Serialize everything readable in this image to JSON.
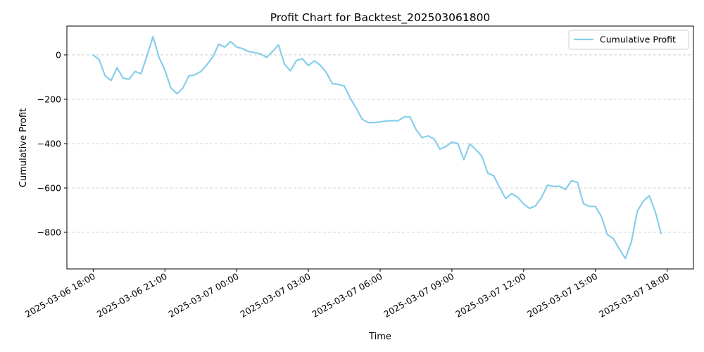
{
  "chart_data": {
    "type": "line",
    "title": "Profit Chart for Backtest_202503061800",
    "xlabel": "Time",
    "ylabel": "Cumulative Profit",
    "xlim": [
      "2025-03-06 16:54",
      "2025-03-07 19:06"
    ],
    "ylim": [
      -965,
      130
    ],
    "grid": "horizontal dashed",
    "legend_position": "top-right",
    "x_ticks": [
      {
        "time": "2025-03-06 18:00",
        "label": "2025-03-06 18:00"
      },
      {
        "time": "2025-03-06 21:00",
        "label": "2025-03-06 21:00"
      },
      {
        "time": "2025-03-07 00:00",
        "label": "2025-03-07 00:00"
      },
      {
        "time": "2025-03-07 03:00",
        "label": "2025-03-07 03:00"
      },
      {
        "time": "2025-03-07 06:00",
        "label": "2025-03-07 06:00"
      },
      {
        "time": "2025-03-07 09:00",
        "label": "2025-03-07 09:00"
      },
      {
        "time": "2025-03-07 12:00",
        "label": "2025-03-07 12:00"
      },
      {
        "time": "2025-03-07 15:00",
        "label": "2025-03-07 15:00"
      },
      {
        "time": "2025-03-07 18:00",
        "label": "2025-03-07 18:00"
      }
    ],
    "y_ticks": [
      {
        "value": 0,
        "label": "0"
      },
      {
        "value": -200,
        "label": "−200"
      },
      {
        "value": -400,
        "label": "−400"
      },
      {
        "value": -600,
        "label": "−600"
      },
      {
        "value": -800,
        "label": "−800"
      }
    ],
    "series": [
      {
        "name": "Cumulative Profit",
        "color": "#87ceeb",
        "x": [
          "2025-03-06 18:00",
          "2025-03-06 18:15",
          "2025-03-06 18:30",
          "2025-03-06 18:45",
          "2025-03-06 19:00",
          "2025-03-06 19:15",
          "2025-03-06 19:30",
          "2025-03-06 19:45",
          "2025-03-06 20:00",
          "2025-03-06 20:15",
          "2025-03-06 20:30",
          "2025-03-06 20:45",
          "2025-03-06 21:00",
          "2025-03-06 21:15",
          "2025-03-06 21:30",
          "2025-03-06 21:45",
          "2025-03-06 22:00",
          "2025-03-06 22:15",
          "2025-03-06 22:30",
          "2025-03-06 22:45",
          "2025-03-06 23:00",
          "2025-03-06 23:15",
          "2025-03-06 23:30",
          "2025-03-06 23:45",
          "2025-03-07 00:00",
          "2025-03-07 00:15",
          "2025-03-07 00:30",
          "2025-03-07 00:45",
          "2025-03-07 01:00",
          "2025-03-07 01:15",
          "2025-03-07 01:30",
          "2025-03-07 01:45",
          "2025-03-07 02:00",
          "2025-03-07 02:15",
          "2025-03-07 02:30",
          "2025-03-07 02:45",
          "2025-03-07 03:00",
          "2025-03-07 03:15",
          "2025-03-07 03:30",
          "2025-03-07 03:45",
          "2025-03-07 04:00",
          "2025-03-07 04:15",
          "2025-03-07 04:30",
          "2025-03-07 04:45",
          "2025-03-07 05:00",
          "2025-03-07 05:15",
          "2025-03-07 05:30",
          "2025-03-07 05:45",
          "2025-03-07 06:00",
          "2025-03-07 06:15",
          "2025-03-07 06:30",
          "2025-03-07 06:45",
          "2025-03-07 07:00",
          "2025-03-07 07:15",
          "2025-03-07 07:30",
          "2025-03-07 07:45",
          "2025-03-07 08:00",
          "2025-03-07 08:15",
          "2025-03-07 08:30",
          "2025-03-07 08:45",
          "2025-03-07 09:00",
          "2025-03-07 09:15",
          "2025-03-07 09:30",
          "2025-03-07 09:45",
          "2025-03-07 10:00",
          "2025-03-07 10:15",
          "2025-03-07 10:30",
          "2025-03-07 10:45",
          "2025-03-07 11:00",
          "2025-03-07 11:15",
          "2025-03-07 11:30",
          "2025-03-07 11:45",
          "2025-03-07 12:00",
          "2025-03-07 12:15",
          "2025-03-07 12:30",
          "2025-03-07 12:45",
          "2025-03-07 13:00",
          "2025-03-07 13:15",
          "2025-03-07 13:30",
          "2025-03-07 13:45",
          "2025-03-07 14:00",
          "2025-03-07 14:15",
          "2025-03-07 14:30",
          "2025-03-07 14:45",
          "2025-03-07 15:00",
          "2025-03-07 15:15",
          "2025-03-07 15:30",
          "2025-03-07 15:45",
          "2025-03-07 16:00",
          "2025-03-07 16:15",
          "2025-03-07 16:30",
          "2025-03-07 16:45",
          "2025-03-07 17:00",
          "2025-03-07 17:15",
          "2025-03-07 17:30",
          "2025-03-07 17:45"
        ],
        "values": [
          0,
          -22,
          -95,
          -115,
          -58,
          -105,
          -110,
          -75,
          -85,
          -5,
          82,
          -10,
          -70,
          -150,
          -175,
          -150,
          -95,
          -90,
          -75,
          -45,
          -10,
          48,
          35,
          60,
          35,
          28,
          15,
          10,
          5,
          -12,
          15,
          45,
          -42,
          -72,
          -25,
          -18,
          -48,
          -27,
          -47,
          -80,
          -130,
          -133,
          -140,
          -195,
          -240,
          -290,
          -305,
          -305,
          -302,
          -298,
          -297,
          -297,
          -280,
          -280,
          -337,
          -373,
          -365,
          -378,
          -425,
          -413,
          -393,
          -400,
          -472,
          -402,
          -427,
          -457,
          -533,
          -545,
          -598,
          -648,
          -625,
          -642,
          -672,
          -692,
          -680,
          -642,
          -587,
          -593,
          -592,
          -607,
          -567,
          -575,
          -670,
          -683,
          -683,
          -728,
          -810,
          -828,
          -875,
          -918,
          -845,
          -705,
          -660,
          -635,
          -705,
          -805
        ]
      }
    ]
  }
}
